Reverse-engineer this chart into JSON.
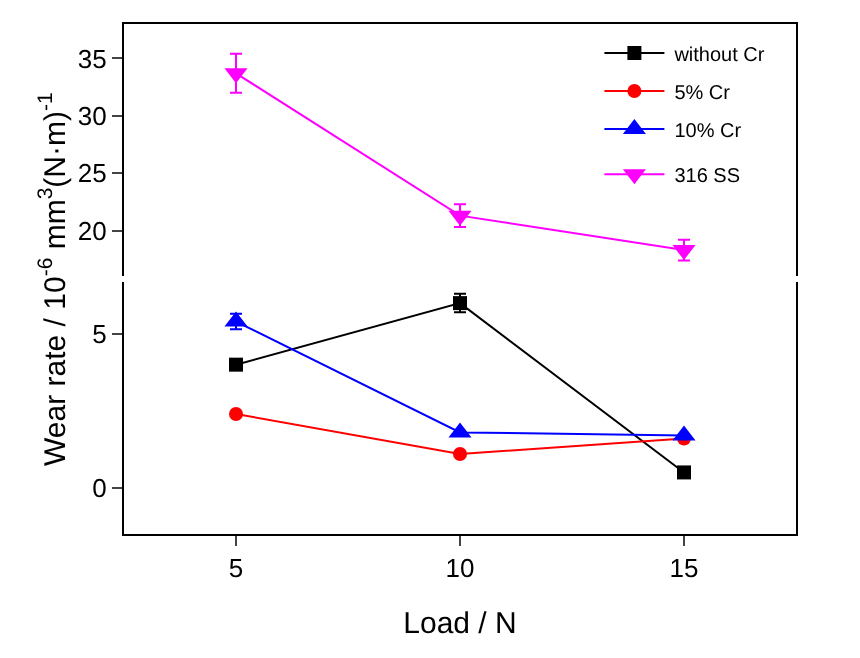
{
  "chart_data": [
    {
      "type": "line",
      "ylabel": "Wear rate / 10$^{-6}$ mm$^{3}$(N·m)$^{-1}$",
      "x": [
        5,
        10,
        15
      ],
      "xlim": [
        2.5,
        17.5
      ],
      "xticks": [
        5,
        10,
        15
      ],
      "ylim": [
        16,
        38
      ],
      "yticks": [
        20,
        25,
        30,
        35
      ],
      "tick_labels": "y",
      "legend": "right",
      "line_style": "solid",
      "series": [
        {
          "name": "316 SS",
          "color": "#ff00ff",
          "marker": "triangle-down",
          "values": [
            33.7,
            21.3,
            18.3
          ],
          "errors": [
            1.7,
            1.0,
            0.9
          ]
        }
      ]
    },
    {
      "type": "line",
      "xlabel": "Load / N",
      "x": [
        5,
        10,
        15
      ],
      "xlim": [
        2.5,
        17.5
      ],
      "xticks": [
        5,
        10,
        15
      ],
      "ylim": [
        -1.5,
        6.7
      ],
      "yticks": [
        0,
        5
      ],
      "legend": "top right",
      "line_style": "solid",
      "series": [
        {
          "name": "without Cr",
          "color": "#000000",
          "marker": "square",
          "values": [
            4.0,
            6.0,
            0.5
          ],
          "errors": [
            null,
            0.3,
            null
          ]
        },
        {
          "name": "5% Cr",
          "color": "#ff0000",
          "marker": "circle",
          "values": [
            2.4,
            1.1,
            1.6
          ]
        },
        {
          "name": "10% Cr",
          "color": "#0000ff",
          "marker": "triangle",
          "values": [
            5.4,
            1.8,
            1.7
          ],
          "errors": [
            0.25,
            null,
            null
          ]
        }
      ]
    }
  ]
}
